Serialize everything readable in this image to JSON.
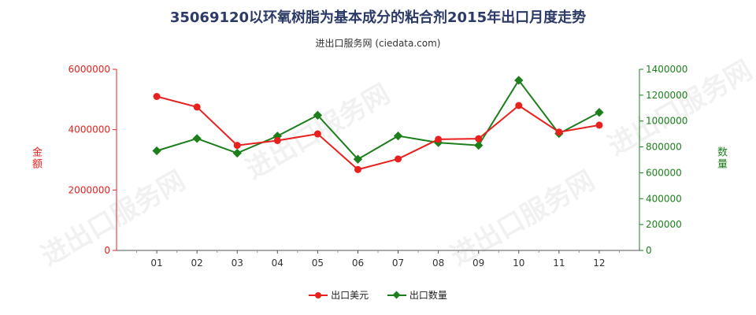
{
  "title": "35069120以环氧树脂为基本成分的粘合剂2015年出口月度走势",
  "subtitle": "进出口服务网 (ciedata.com)",
  "watermark": "进出口服务网",
  "colors": {
    "value": "#e8201e",
    "quantity": "#1c7f1c",
    "title": "#2b3a66",
    "grid": "#dddddd"
  },
  "chart_data": {
    "type": "line",
    "title": "35069120以环氧树脂为基本成分的粘合剂2015年出口月度走势",
    "categories": [
      "01",
      "02",
      "03",
      "04",
      "05",
      "06",
      "07",
      "08",
      "09",
      "10",
      "11",
      "12"
    ],
    "left_axis": {
      "label": "金额",
      "range": [
        0,
        6000000
      ],
      "ticks": [
        "0",
        "2000000",
        "4000000",
        "6000000"
      ]
    },
    "right_axis": {
      "label": "数量",
      "range": [
        0,
        1400000
      ],
      "ticks": [
        "0",
        "200000",
        "400000",
        "600000",
        "800000",
        "1000000",
        "1200000",
        "1400000"
      ]
    },
    "series": [
      {
        "name": "出口美元",
        "axis": "left",
        "color": "#e8201e",
        "marker": "circle",
        "values": [
          5100000,
          4750000,
          3480000,
          3640000,
          3860000,
          2680000,
          3030000,
          3680000,
          3700000,
          4800000,
          3920000,
          4150000
        ]
      },
      {
        "name": "出口数量",
        "axis": "right",
        "color": "#1c7f1c",
        "marker": "diamond",
        "values": [
          770000,
          865000,
          752000,
          884000,
          1045000,
          705000,
          885000,
          833000,
          812000,
          1315000,
          903000,
          1067000
        ]
      }
    ],
    "grid": false,
    "legend": "bottom-center"
  }
}
